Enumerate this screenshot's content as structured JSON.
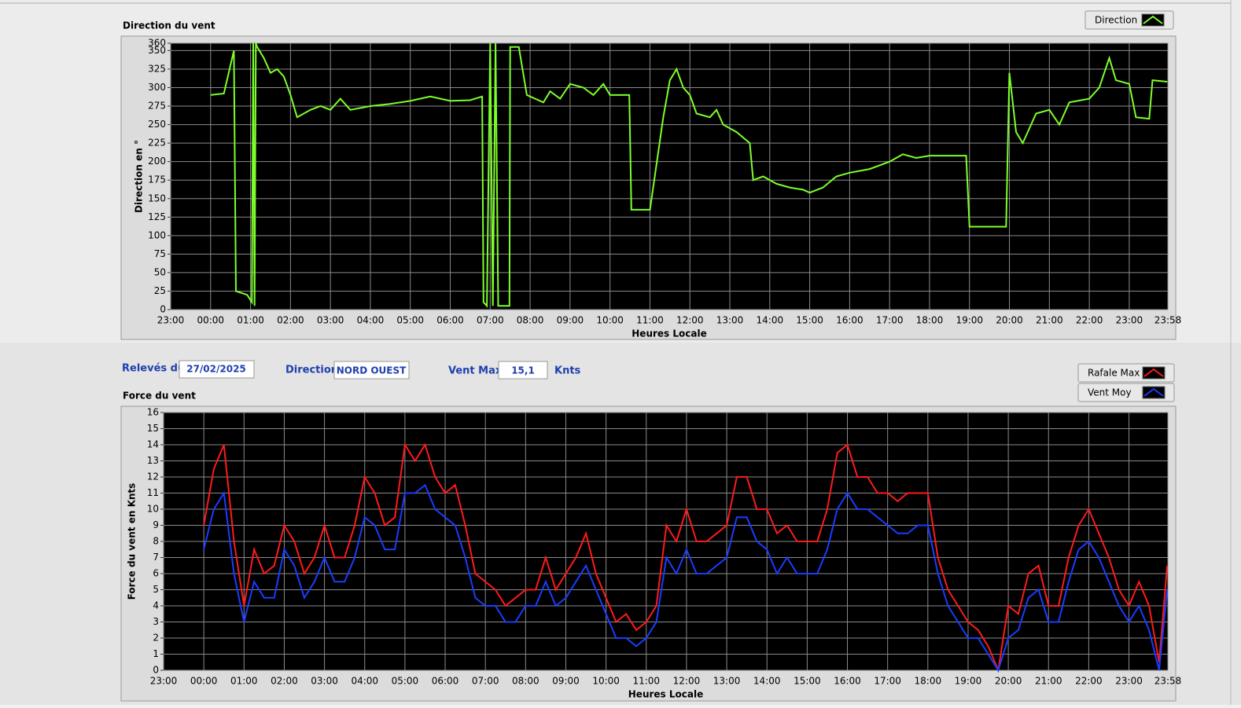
{
  "fields": [
    {
      "label": "Relevés du",
      "value": "27/02/2025"
    },
    {
      "label": "Direction",
      "value": "NORD OUEST"
    },
    {
      "label": "Vent Max",
      "value": "15,1",
      "unit": "Knts"
    }
  ],
  "chart_data": [
    {
      "type": "line",
      "title": "Direction du vent",
      "y_label": "Direction en °",
      "x_label": "Heures Locale",
      "grid": true,
      "xlim": [
        -60,
        1438
      ],
      "xticks": [
        {
          "value": -60,
          "label": "23:00"
        },
        {
          "value": 0,
          "label": "00:00"
        },
        {
          "value": 60,
          "label": "01:00"
        },
        {
          "value": 120,
          "label": "02:00"
        },
        {
          "value": 180,
          "label": "03:00"
        },
        {
          "value": 240,
          "label": "04:00"
        },
        {
          "value": 300,
          "label": "05:00"
        },
        {
          "value": 360,
          "label": "06:00"
        },
        {
          "value": 420,
          "label": "07:00"
        },
        {
          "value": 480,
          "label": "08:00"
        },
        {
          "value": 540,
          "label": "09:00"
        },
        {
          "value": 600,
          "label": "10:00"
        },
        {
          "value": 660,
          "label": "11:00"
        },
        {
          "value": 720,
          "label": "12:00"
        },
        {
          "value": 780,
          "label": "13:00"
        },
        {
          "value": 840,
          "label": "14:00"
        },
        {
          "value": 900,
          "label": "15:00"
        },
        {
          "value": 960,
          "label": "16:00"
        },
        {
          "value": 1020,
          "label": "17:00"
        },
        {
          "value": 1080,
          "label": "18:00"
        },
        {
          "value": 1140,
          "label": "19:00"
        },
        {
          "value": 1200,
          "label": "20:00"
        },
        {
          "value": 1260,
          "label": "21:00"
        },
        {
          "value": 1320,
          "label": "22:00"
        },
        {
          "value": 1380,
          "label": "23:00"
        },
        {
          "value": 1438,
          "label": "23:58"
        }
      ],
      "ylim": [
        0,
        360
      ],
      "yticks": [
        0,
        25,
        50,
        75,
        100,
        125,
        150,
        175,
        200,
        225,
        250,
        275,
        300,
        325,
        350,
        360
      ],
      "x": [
        0,
        20,
        35,
        38,
        55,
        62,
        64,
        66,
        68,
        70,
        80,
        90,
        100,
        110,
        120,
        130,
        140,
        150,
        165,
        180,
        195,
        210,
        240,
        270,
        300,
        330,
        360,
        390,
        408,
        410,
        415,
        420,
        424,
        428,
        432,
        440,
        449,
        450,
        463,
        475,
        500,
        510,
        525,
        540,
        560,
        575,
        590,
        600,
        629,
        632,
        660,
        680,
        690,
        700,
        710,
        720,
        730,
        750,
        760,
        770,
        790,
        810,
        815,
        830,
        850,
        870,
        890,
        900,
        920,
        940,
        960,
        990,
        1020,
        1040,
        1060,
        1080,
        1135,
        1140,
        1195,
        1200,
        1210,
        1220,
        1240,
        1260,
        1275,
        1290,
        1320,
        1335,
        1350,
        1360,
        1380,
        1390,
        1410,
        1415,
        1437
      ],
      "series": [
        {
          "name": "Direction",
          "color": "#7dff2a",
          "values": [
            290,
            292,
            350,
            25,
            20,
            10,
            360,
            5,
            360,
            355,
            340,
            320,
            325,
            315,
            290,
            260,
            265,
            270,
            275,
            270,
            285,
            270,
            275,
            278,
            282,
            288,
            282,
            283,
            288,
            10,
            5,
            360,
            5,
            360,
            5,
            5,
            5,
            355,
            355,
            290,
            280,
            295,
            285,
            305,
            300,
            290,
            305,
            290,
            290,
            135,
            135,
            260,
            310,
            325,
            300,
            290,
            265,
            260,
            270,
            250,
            240,
            225,
            175,
            180,
            170,
            165,
            162,
            158,
            165,
            180,
            185,
            190,
            200,
            210,
            205,
            208,
            208,
            112,
            112,
            320,
            240,
            225,
            265,
            270,
            250,
            280,
            285,
            300,
            340,
            310,
            305,
            260,
            258,
            310,
            308
          ]
        }
      ]
    },
    {
      "type": "line",
      "title": "Force du vent",
      "y_label": "Force du vent en Knts",
      "x_label": "Heures Locale",
      "grid": true,
      "xlim": [
        -60,
        1438
      ],
      "xticks": [
        {
          "value": -60,
          "label": "23:00"
        },
        {
          "value": 0,
          "label": "00:00"
        },
        {
          "value": 60,
          "label": "01:00"
        },
        {
          "value": 120,
          "label": "02:00"
        },
        {
          "value": 180,
          "label": "03:00"
        },
        {
          "value": 240,
          "label": "04:00"
        },
        {
          "value": 300,
          "label": "05:00"
        },
        {
          "value": 360,
          "label": "06:00"
        },
        {
          "value": 420,
          "label": "07:00"
        },
        {
          "value": 480,
          "label": "08:00"
        },
        {
          "value": 540,
          "label": "09:00"
        },
        {
          "value": 600,
          "label": "10:00"
        },
        {
          "value": 660,
          "label": "11:00"
        },
        {
          "value": 720,
          "label": "12:00"
        },
        {
          "value": 780,
          "label": "13:00"
        },
        {
          "value": 840,
          "label": "14:00"
        },
        {
          "value": 900,
          "label": "15:00"
        },
        {
          "value": 960,
          "label": "16:00"
        },
        {
          "value": 1020,
          "label": "17:00"
        },
        {
          "value": 1080,
          "label": "18:00"
        },
        {
          "value": 1140,
          "label": "19:00"
        },
        {
          "value": 1200,
          "label": "20:00"
        },
        {
          "value": 1260,
          "label": "21:00"
        },
        {
          "value": 1320,
          "label": "22:00"
        },
        {
          "value": 1380,
          "label": "23:00"
        },
        {
          "value": 1438,
          "label": "23:58"
        }
      ],
      "ylim": [
        0,
        16
      ],
      "yticks": [
        0,
        1,
        2,
        3,
        4,
        5,
        6,
        7,
        8,
        9,
        10,
        11,
        12,
        13,
        14,
        15,
        16
      ],
      "x": [
        0,
        15,
        30,
        45,
        60,
        75,
        90,
        105,
        120,
        135,
        150,
        165,
        180,
        195,
        210,
        225,
        240,
        255,
        270,
        285,
        300,
        315,
        330,
        345,
        360,
        375,
        390,
        405,
        420,
        435,
        450,
        465,
        480,
        495,
        510,
        525,
        540,
        555,
        570,
        585,
        600,
        615,
        630,
        645,
        660,
        675,
        690,
        705,
        720,
        735,
        750,
        765,
        780,
        795,
        810,
        825,
        840,
        855,
        870,
        885,
        900,
        915,
        930,
        945,
        960,
        975,
        990,
        1005,
        1020,
        1035,
        1050,
        1065,
        1080,
        1095,
        1110,
        1125,
        1140,
        1155,
        1170,
        1185,
        1200,
        1215,
        1230,
        1245,
        1260,
        1275,
        1290,
        1305,
        1320,
        1335,
        1350,
        1365,
        1380,
        1395,
        1410,
        1425,
        1437
      ],
      "series": [
        {
          "name": "Rafale Max",
          "color": "#ff1a1a",
          "values": [
            9,
            12.5,
            14,
            8,
            4,
            7.5,
            6,
            6.5,
            9,
            8,
            6,
            7,
            9,
            7,
            7,
            9,
            12,
            11,
            9,
            9.5,
            14,
            13,
            14,
            12,
            11,
            11.5,
            9,
            6,
            5.5,
            5,
            4,
            4.5,
            5,
            5,
            7,
            5,
            6,
            7,
            8.5,
            6,
            4.5,
            3,
            3.5,
            2.5,
            3,
            4,
            9,
            8,
            10,
            8,
            8,
            8.5,
            9,
            12,
            12,
            10,
            10,
            8.5,
            9,
            8,
            8,
            8,
            10,
            13.5,
            14,
            12,
            12,
            11,
            11,
            10.5,
            11,
            11,
            11,
            7,
            5,
            4,
            3,
            2.5,
            1.5,
            0,
            4,
            3.5,
            6,
            6.5,
            4,
            4,
            7,
            9,
            10,
            8.5,
            7,
            5,
            4,
            5.5,
            4,
            0.5,
            6.5
          ]
        },
        {
          "name": "Vent Moy",
          "color": "#1a3cff",
          "values": [
            7.5,
            10,
            11,
            6,
            3,
            5.5,
            4.5,
            4.5,
            7.5,
            6.5,
            4.5,
            5.5,
            7,
            5.5,
            5.5,
            7,
            9.5,
            9,
            7.5,
            7.5,
            11,
            11,
            11.5,
            10,
            9.5,
            9,
            7,
            4.5,
            4,
            4,
            3,
            3,
            4,
            4,
            5.5,
            4,
            4.5,
            5.5,
            6.5,
            5,
            3.5,
            2,
            2,
            1.5,
            2,
            3,
            7,
            6,
            7.5,
            6,
            6,
            6.5,
            7,
            9.5,
            9.5,
            8,
            7.5,
            6,
            7,
            6,
            6,
            6,
            7.5,
            10,
            11,
            10,
            10,
            9.5,
            9,
            8.5,
            8.5,
            9,
            9,
            6,
            4,
            3,
            2,
            2,
            1,
            0,
            2,
            2.5,
            4.5,
            5,
            3,
            3,
            5.5,
            7.5,
            8,
            7,
            5.5,
            4,
            3,
            4,
            2.5,
            0,
            5
          ]
        }
      ]
    }
  ]
}
